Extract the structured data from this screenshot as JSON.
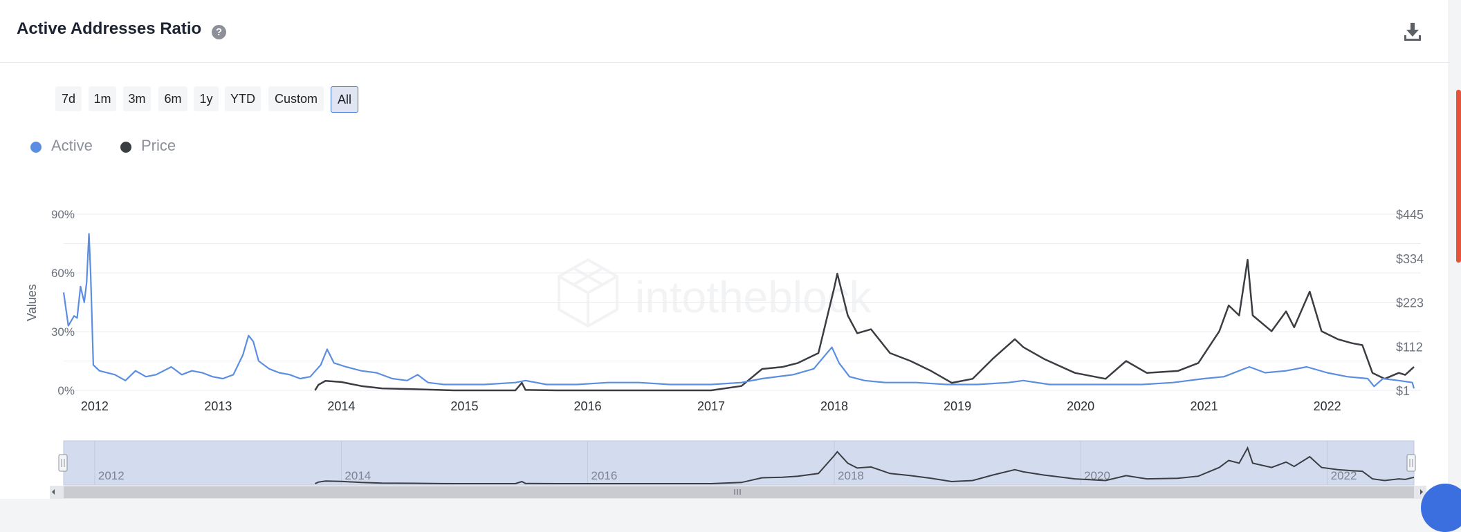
{
  "header": {
    "title": "Active Addresses Ratio",
    "help_glyph": "?",
    "help_icon": "question-circle-icon",
    "download_icon": "download-icon"
  },
  "ranges": [
    {
      "label": "7d",
      "active": false
    },
    {
      "label": "1m",
      "active": false
    },
    {
      "label": "3m",
      "active": false
    },
    {
      "label": "6m",
      "active": false
    },
    {
      "label": "1y",
      "active": false
    },
    {
      "label": "YTD",
      "active": false
    },
    {
      "label": "Custom",
      "active": false
    },
    {
      "label": "All",
      "active": true
    }
  ],
  "watermark": "intotheblock",
  "colors": {
    "active": "#5b8ee0",
    "price": "#3a3d42",
    "accent": "#3e6ad8",
    "navigator_fill": "#d3dbef"
  },
  "chart_data": {
    "type": "line",
    "title": "Active Addresses Ratio",
    "ylabel": "Values",
    "ylim_left": [
      0,
      90
    ],
    "left_ticks": [
      {
        "value": 0,
        "label": "0%"
      },
      {
        "value": 30,
        "label": "30%"
      },
      {
        "value": 60,
        "label": "60%"
      },
      {
        "value": 90,
        "label": "90%"
      }
    ],
    "ylim_right": [
      1,
      445
    ],
    "right_ticks": [
      {
        "value": 1,
        "label": "$1"
      },
      {
        "value": 112,
        "label": "$112"
      },
      {
        "value": 223,
        "label": "$223"
      },
      {
        "value": 334,
        "label": "$334"
      },
      {
        "value": 445,
        "label": "$445"
      }
    ],
    "xlim": [
      "2011-10-01",
      "2022-09-15"
    ],
    "x_ticks": [
      "2012",
      "2013",
      "2014",
      "2015",
      "2016",
      "2017",
      "2018",
      "2019",
      "2020",
      "2021",
      "2022"
    ],
    "navigator_ticks": [
      "2012",
      "2014",
      "2016",
      "2018",
      "2020",
      "2022"
    ],
    "legend_position": "top-left",
    "grid": true,
    "series": [
      {
        "name": "Active",
        "axis": "left",
        "color": "#5b8ee0",
        "points": [
          [
            "2011-10-01",
            50
          ],
          [
            "2011-10-15",
            33
          ],
          [
            "2011-11-01",
            38
          ],
          [
            "2011-11-10",
            37
          ],
          [
            "2011-11-20",
            53
          ],
          [
            "2011-12-01",
            45
          ],
          [
            "2011-12-08",
            55
          ],
          [
            "2011-12-15",
            80
          ],
          [
            "2011-12-20",
            60
          ],
          [
            "2011-12-28",
            13
          ],
          [
            "2012-01-15",
            10
          ],
          [
            "2012-03-01",
            8
          ],
          [
            "2012-04-01",
            5
          ],
          [
            "2012-05-01",
            10
          ],
          [
            "2012-06-01",
            7
          ],
          [
            "2012-07-01",
            8
          ],
          [
            "2012-08-15",
            12
          ],
          [
            "2012-09-15",
            8
          ],
          [
            "2012-10-15",
            10
          ],
          [
            "2012-11-15",
            9
          ],
          [
            "2012-12-15",
            7
          ],
          [
            "2013-01-15",
            6
          ],
          [
            "2013-02-15",
            8
          ],
          [
            "2013-03-15",
            18
          ],
          [
            "2013-04-01",
            28
          ],
          [
            "2013-04-15",
            25
          ],
          [
            "2013-05-01",
            15
          ],
          [
            "2013-06-01",
            11
          ],
          [
            "2013-07-01",
            9
          ],
          [
            "2013-08-01",
            8
          ],
          [
            "2013-09-01",
            6
          ],
          [
            "2013-10-01",
            7
          ],
          [
            "2013-11-01",
            13
          ],
          [
            "2013-11-20",
            21
          ],
          [
            "2013-12-10",
            14
          ],
          [
            "2014-01-15",
            12
          ],
          [
            "2014-03-01",
            10
          ],
          [
            "2014-04-15",
            9
          ],
          [
            "2014-06-01",
            6
          ],
          [
            "2014-07-15",
            5
          ],
          [
            "2014-08-15",
            8
          ],
          [
            "2014-09-15",
            4
          ],
          [
            "2014-11-01",
            3
          ],
          [
            "2015-01-01",
            3
          ],
          [
            "2015-03-01",
            3
          ],
          [
            "2015-06-01",
            4
          ],
          [
            "2015-07-01",
            5
          ],
          [
            "2015-09-01",
            3
          ],
          [
            "2015-12-01",
            3
          ],
          [
            "2016-03-01",
            4
          ],
          [
            "2016-06-01",
            4
          ],
          [
            "2016-09-01",
            3
          ],
          [
            "2017-01-01",
            3
          ],
          [
            "2017-04-01",
            4
          ],
          [
            "2017-06-01",
            6
          ],
          [
            "2017-09-01",
            8
          ],
          [
            "2017-11-01",
            11
          ],
          [
            "2017-12-10",
            19
          ],
          [
            "2017-12-25",
            22
          ],
          [
            "2018-01-15",
            14
          ],
          [
            "2018-02-15",
            7
          ],
          [
            "2018-04-01",
            5
          ],
          [
            "2018-06-01",
            4
          ],
          [
            "2018-09-01",
            4
          ],
          [
            "2018-12-01",
            3
          ],
          [
            "2019-03-01",
            3
          ],
          [
            "2019-06-01",
            4
          ],
          [
            "2019-07-15",
            5
          ],
          [
            "2019-10-01",
            3
          ],
          [
            "2020-01-01",
            3
          ],
          [
            "2020-04-01",
            3
          ],
          [
            "2020-07-01",
            3
          ],
          [
            "2020-10-01",
            4
          ],
          [
            "2021-01-01",
            6
          ],
          [
            "2021-03-01",
            7
          ],
          [
            "2021-05-15",
            12
          ],
          [
            "2021-07-01",
            9
          ],
          [
            "2021-09-01",
            10
          ],
          [
            "2021-11-01",
            12
          ],
          [
            "2022-01-01",
            9
          ],
          [
            "2022-03-01",
            7
          ],
          [
            "2022-05-01",
            6
          ],
          [
            "2022-05-20",
            2
          ],
          [
            "2022-06-15",
            6
          ],
          [
            "2022-08-01",
            5
          ],
          [
            "2022-09-10",
            4
          ],
          [
            "2022-09-15",
            1
          ]
        ]
      },
      {
        "name": "Price",
        "axis": "right",
        "color": "#3a3d42",
        "points": [
          [
            "2013-10-15",
            1
          ],
          [
            "2013-10-25",
            15
          ],
          [
            "2013-11-15",
            25
          ],
          [
            "2014-01-01",
            22
          ],
          [
            "2014-03-01",
            12
          ],
          [
            "2014-05-01",
            6
          ],
          [
            "2014-08-01",
            4
          ],
          [
            "2014-12-01",
            1
          ],
          [
            "2015-03-01",
            1
          ],
          [
            "2015-06-01",
            1
          ],
          [
            "2015-06-20",
            20
          ],
          [
            "2015-07-01",
            2
          ],
          [
            "2015-10-01",
            1
          ],
          [
            "2016-06-01",
            1
          ],
          [
            "2017-01-01",
            1
          ],
          [
            "2017-04-01",
            12
          ],
          [
            "2017-06-01",
            55
          ],
          [
            "2017-08-01",
            60
          ],
          [
            "2017-09-15",
            70
          ],
          [
            "2017-11-15",
            95
          ],
          [
            "2018-01-01",
            260
          ],
          [
            "2018-01-10",
            295
          ],
          [
            "2018-02-10",
            190
          ],
          [
            "2018-03-10",
            145
          ],
          [
            "2018-04-20",
            155
          ],
          [
            "2018-06-15",
            95
          ],
          [
            "2018-08-15",
            75
          ],
          [
            "2018-10-15",
            50
          ],
          [
            "2018-12-15",
            20
          ],
          [
            "2019-02-15",
            30
          ],
          [
            "2019-04-15",
            80
          ],
          [
            "2019-06-20",
            130
          ],
          [
            "2019-07-15",
            110
          ],
          [
            "2019-09-15",
            80
          ],
          [
            "2019-12-15",
            45
          ],
          [
            "2020-03-15",
            30
          ],
          [
            "2020-05-15",
            75
          ],
          [
            "2020-07-15",
            45
          ],
          [
            "2020-10-15",
            50
          ],
          [
            "2020-12-15",
            70
          ],
          [
            "2021-02-15",
            150
          ],
          [
            "2021-03-15",
            215
          ],
          [
            "2021-04-15",
            190
          ],
          [
            "2021-05-10",
            330
          ],
          [
            "2021-05-25",
            190
          ],
          [
            "2021-07-20",
            150
          ],
          [
            "2021-09-01",
            200
          ],
          [
            "2021-09-25",
            160
          ],
          [
            "2021-11-10",
            250
          ],
          [
            "2021-12-15",
            150
          ],
          [
            "2022-02-01",
            130
          ],
          [
            "2022-03-15",
            120
          ],
          [
            "2022-04-15",
            115
          ],
          [
            "2022-05-15",
            45
          ],
          [
            "2022-06-20",
            30
          ],
          [
            "2022-08-01",
            45
          ],
          [
            "2022-08-20",
            40
          ],
          [
            "2022-09-15",
            60
          ]
        ]
      }
    ]
  }
}
